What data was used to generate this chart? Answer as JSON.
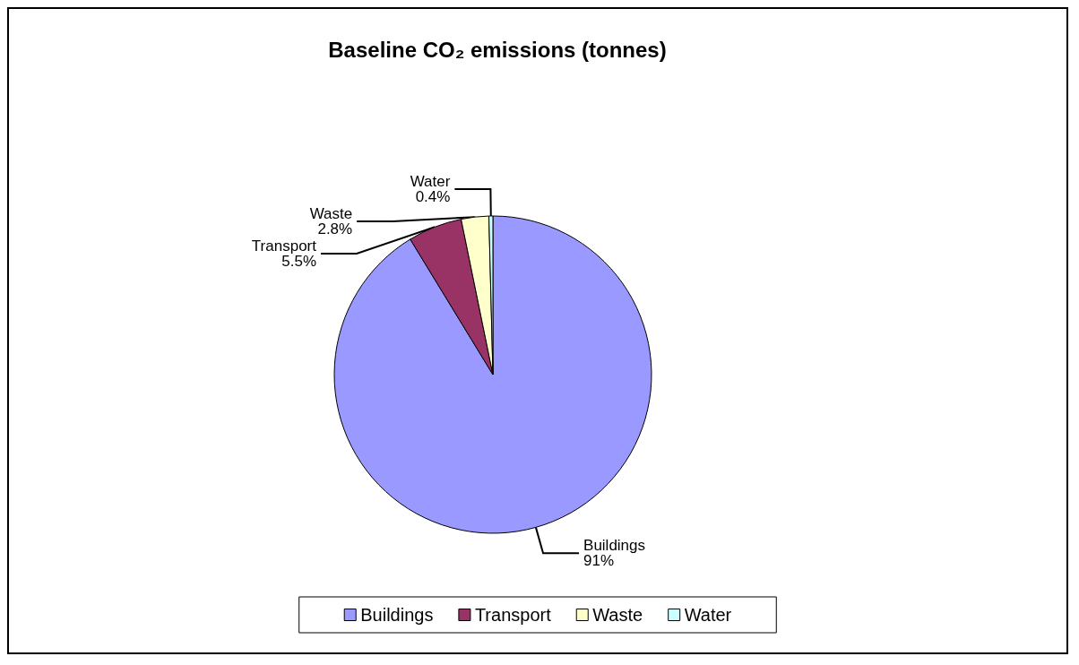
{
  "chart_data": {
    "type": "pie",
    "title": "Baseline CO₂ emissions (tonnes)",
    "categories": [
      "Buildings",
      "Transport",
      "Waste",
      "Water"
    ],
    "values": [
      91,
      5.5,
      2.8,
      0.4
    ],
    "value_labels": [
      "91%",
      "5.5%",
      "2.8%",
      "0.4%"
    ],
    "colors": [
      "#9999ff",
      "#993366",
      "#ffffcc",
      "#ccffff"
    ],
    "legend": "bottom"
  }
}
